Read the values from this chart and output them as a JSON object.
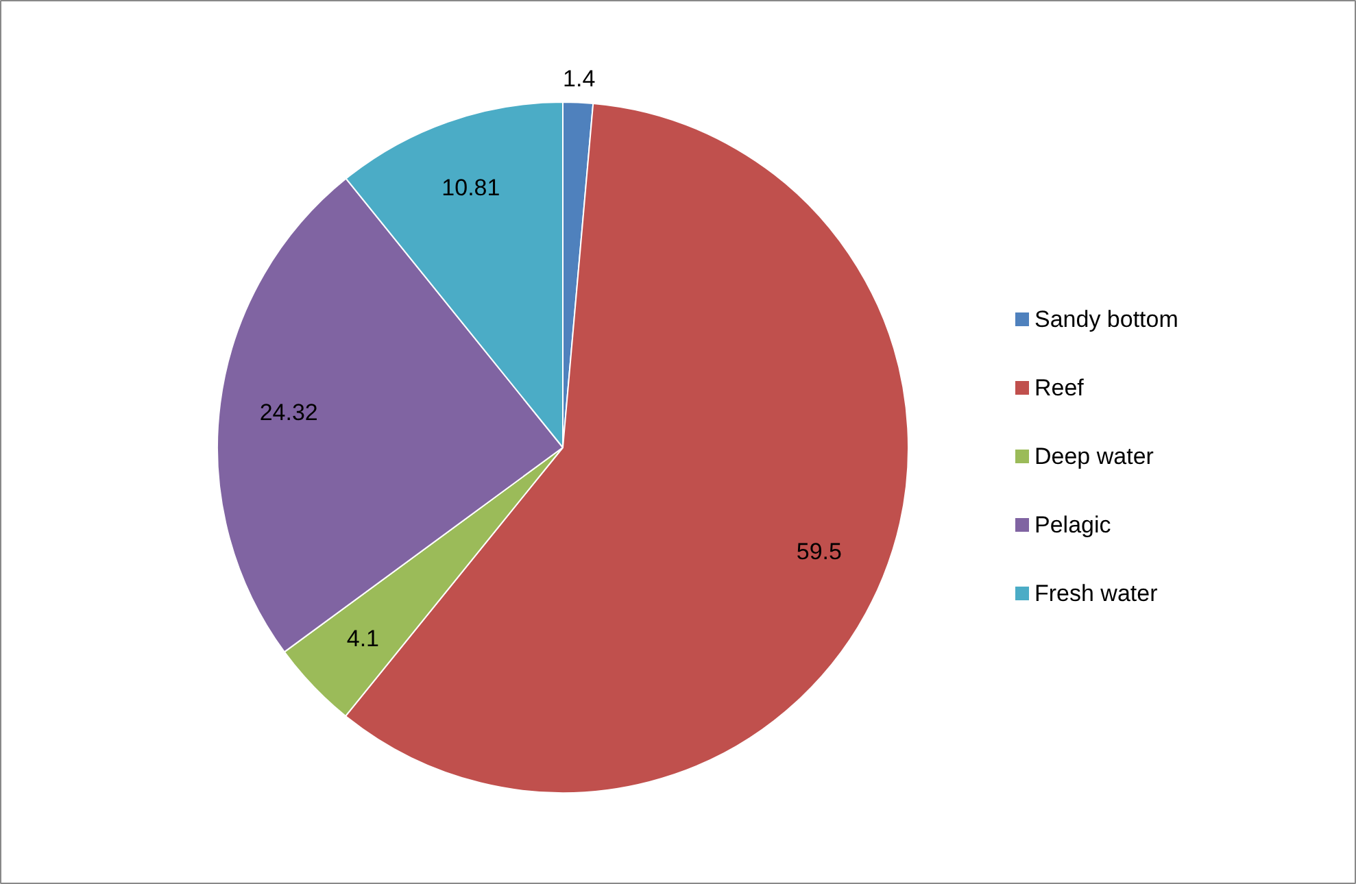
{
  "chart_data": {
    "type": "pie",
    "categories": [
      "Sandy bottom",
      "Reef",
      "Deep water",
      "Pelagic",
      "Fresh water"
    ],
    "values": [
      1.4,
      59.5,
      4.1,
      24.32,
      10.81
    ],
    "colors": [
      "#4f81bd",
      "#c0504d",
      "#9bbb59",
      "#8064a2",
      "#4bacc6"
    ],
    "data_labels": true,
    "legend": "right"
  }
}
